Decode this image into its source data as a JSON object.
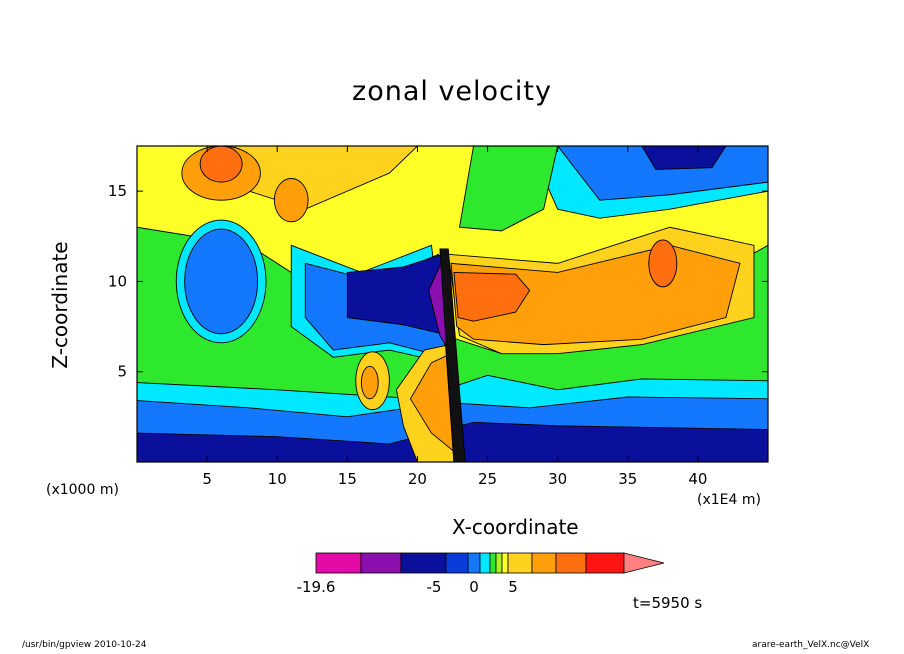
{
  "chart_data": {
    "type": "heatmap",
    "title": "zonal velocity",
    "xlabel": "X-coordinate",
    "ylabel": "Z-coordinate",
    "xunit_left": "(x1000 m)",
    "xunit_right": "(x1E4 m)",
    "xlim": [
      0,
      45
    ],
    "ylim": [
      0,
      17.5
    ],
    "x_ticks": [
      5,
      10,
      15,
      20,
      25,
      30,
      35,
      40
    ],
    "y_ticks": [
      5,
      10,
      15
    ],
    "colorbar": {
      "colors": [
        "#e40aa6",
        "#8b0faf",
        "#0a0f9c",
        "#0a3cdc",
        "#1478ff",
        "#00e8ff",
        "#2ee82e",
        "#aaf516",
        "#ffff28",
        "#ffd21e",
        "#ffa00a",
        "#ff6e0f",
        "#ff1414"
      ],
      "labels": [
        "-19.6",
        "-5",
        "0",
        "5"
      ],
      "extend_color": "#ff8080"
    },
    "time_label": "t=5950 s",
    "footer_left": "/usr/bin/gpview  2010-10-24",
    "footer_right": "arare-earth_VelX.nc@VelX"
  }
}
